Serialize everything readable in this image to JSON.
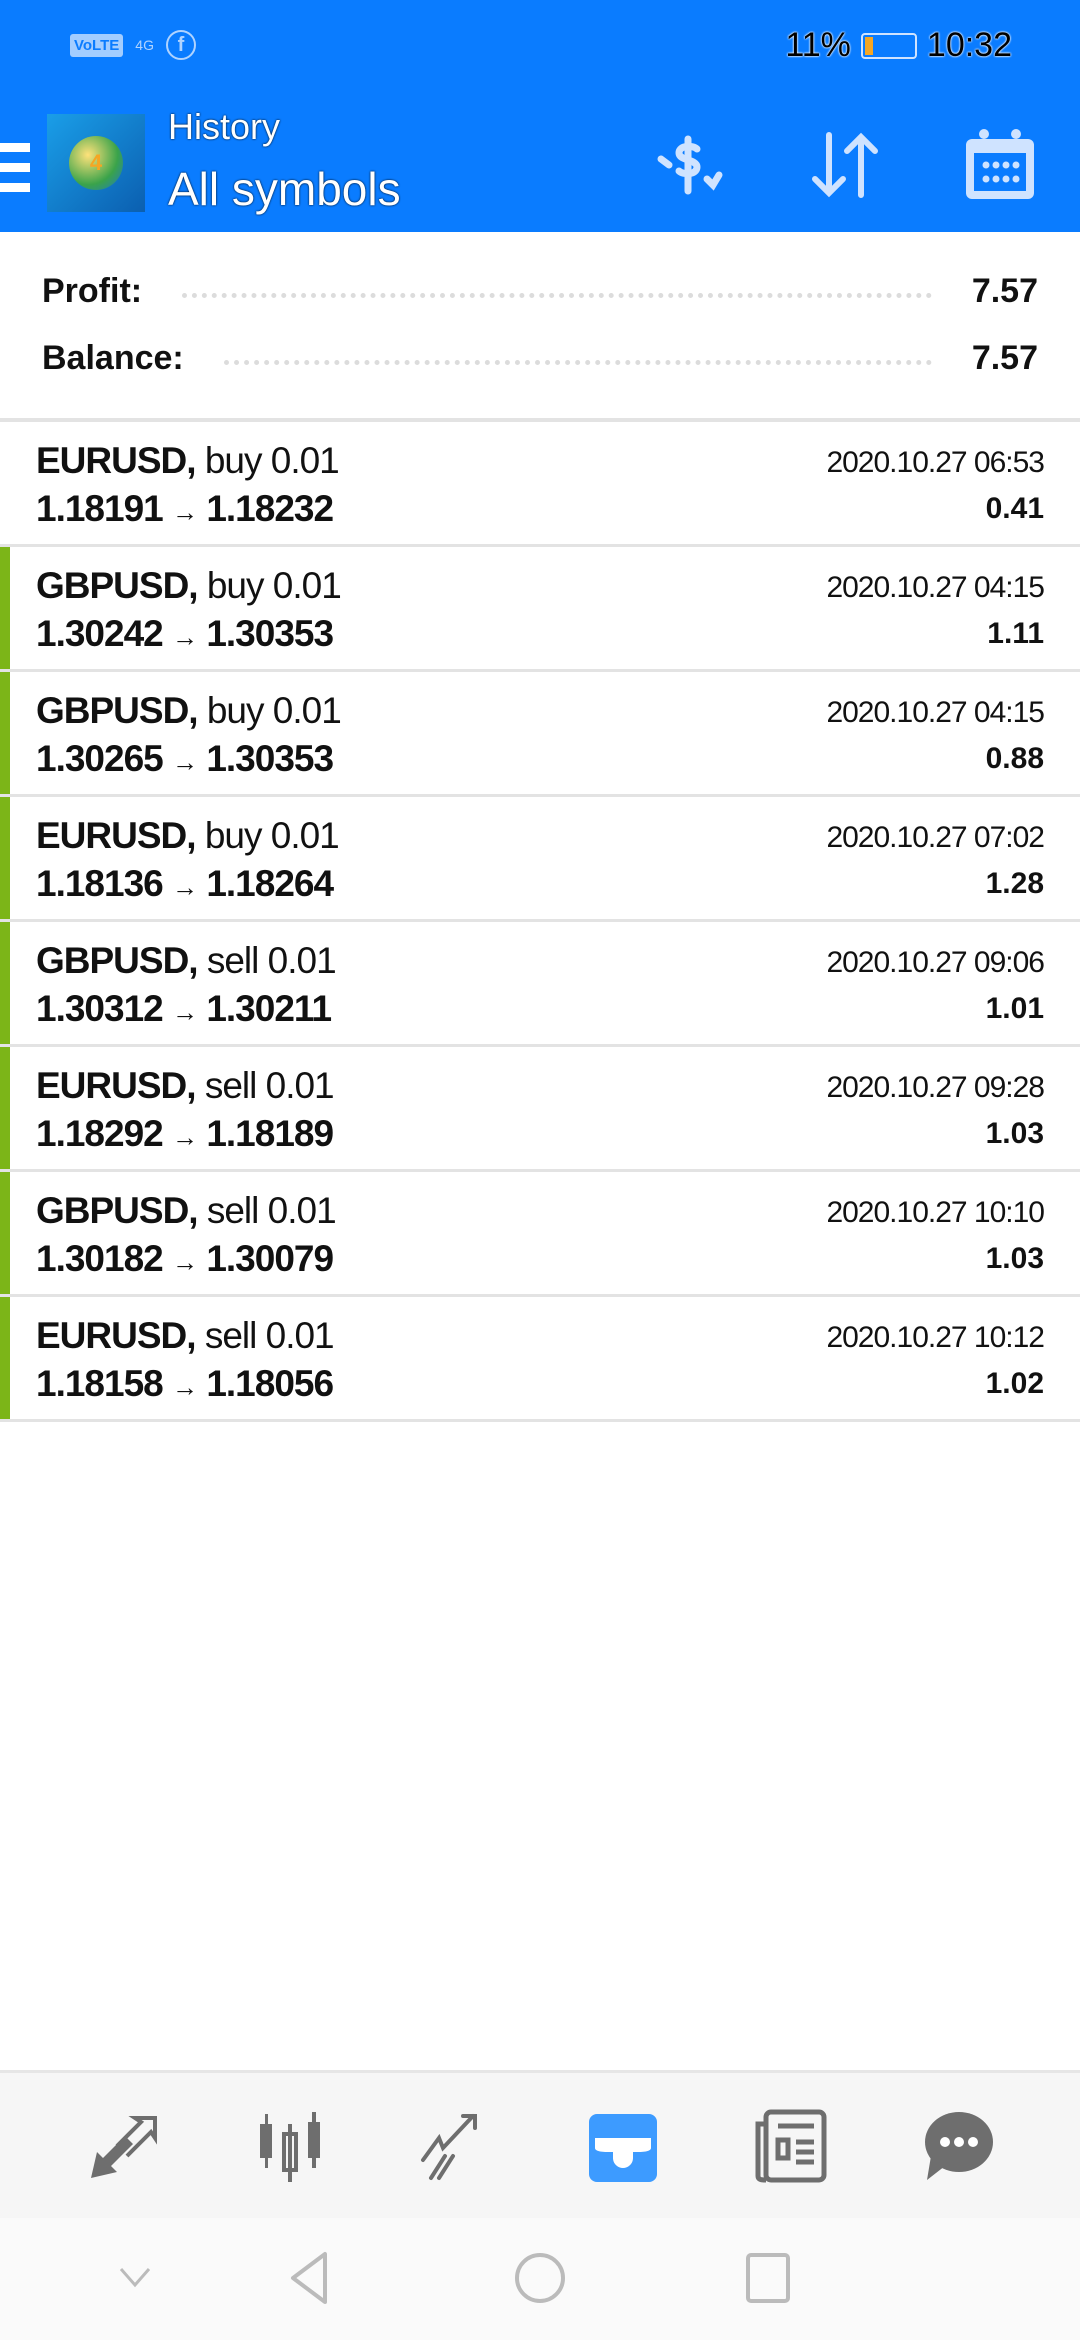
{
  "status_bar": {
    "network": "VoLTE",
    "signal": "4G",
    "battery": "11%",
    "time": "10:32"
  },
  "header": {
    "title": "History",
    "subtitle": "All symbols"
  },
  "summary": {
    "profit_label": "Profit:",
    "profit_value": "7.57",
    "balance_label": "Balance:",
    "balance_value": "7.57"
  },
  "deals": [
    {
      "symbol": "EURUSD,",
      "side": "buy 0.01",
      "open": "1.18191",
      "close": "1.18232",
      "time": "2020.10.27 06:53",
      "profit": "0.41",
      "marked": false
    },
    {
      "symbol": "GBPUSD,",
      "side": "buy 0.01",
      "open": "1.30242",
      "close": "1.30353",
      "time": "2020.10.27 04:15",
      "profit": "1.11",
      "marked": true
    },
    {
      "symbol": "GBPUSD,",
      "side": "buy 0.01",
      "open": "1.30265",
      "close": "1.30353",
      "time": "2020.10.27 04:15",
      "profit": "0.88",
      "marked": true
    },
    {
      "symbol": "EURUSD,",
      "side": "buy 0.01",
      "open": "1.18136",
      "close": "1.18264",
      "time": "2020.10.27 07:02",
      "profit": "1.28",
      "marked": true
    },
    {
      "symbol": "GBPUSD,",
      "side": "sell 0.01",
      "open": "1.30312",
      "close": "1.30211",
      "time": "2020.10.27 09:06",
      "profit": "1.01",
      "marked": true
    },
    {
      "symbol": "EURUSD,",
      "side": "sell 0.01",
      "open": "1.18292",
      "close": "1.18189",
      "time": "2020.10.27 09:28",
      "profit": "1.03",
      "marked": true
    },
    {
      "symbol": "GBPUSD,",
      "side": "sell 0.01",
      "open": "1.30182",
      "close": "1.30079",
      "time": "2020.10.27 10:10",
      "profit": "1.03",
      "marked": true
    },
    {
      "symbol": "EURUSD,",
      "side": "sell 0.01",
      "open": "1.18158",
      "close": "1.18056",
      "time": "2020.10.27 10:12",
      "profit": "1.02",
      "marked": true
    }
  ],
  "arrow": "→",
  "bottom_nav": [
    "quotes-icon",
    "chart-icon",
    "trade-icon",
    "history-icon",
    "news-icon",
    "chat-icon"
  ],
  "active_tab": "history-icon",
  "colors": {
    "header": "#0a7cff",
    "marker": "#7cb518",
    "active": "#3d9bff",
    "icon": "#6e6e6e"
  }
}
